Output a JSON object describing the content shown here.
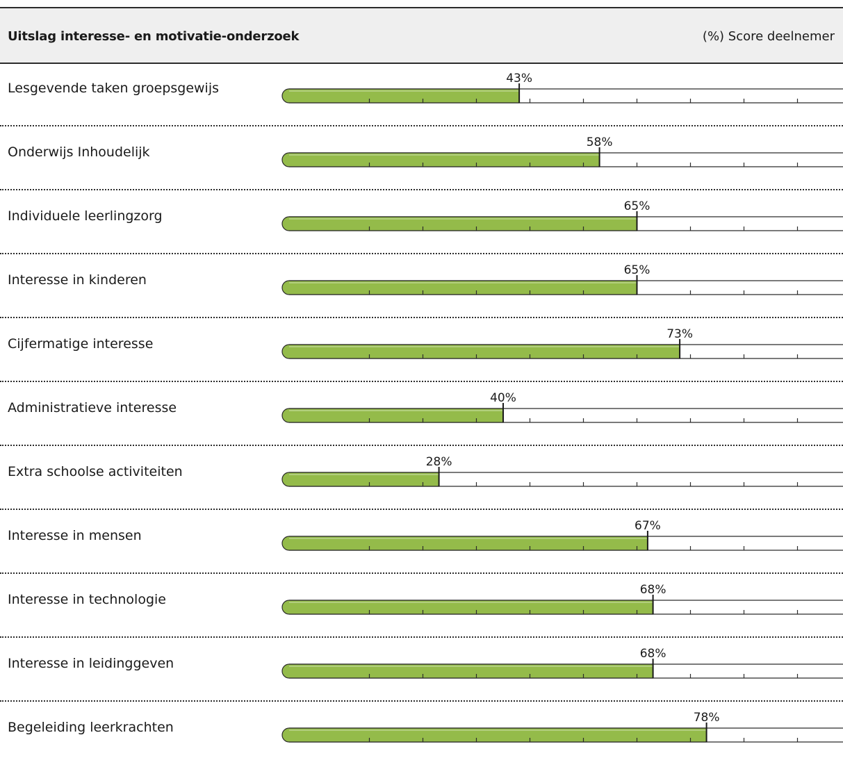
{
  "header": {
    "title": "Uitslag interesse- en motivatie-onderzoek",
    "score_label": "(%) Score deelnemer"
  },
  "chart_data": {
    "type": "bar",
    "orientation": "horizontal",
    "title": "Uitslag interesse- en motivatie-onderzoek",
    "value_unit": "%",
    "xlim": [
      0,
      100
    ],
    "bar_color": "#94bb4a",
    "categories": [
      "Lesgevende taken groepsgewijs",
      "Onderwijs Inhoudelijk",
      "Individuele leerlingzorg",
      "Interesse in kinderen",
      "Cijfermatige interesse",
      "Administratieve interesse",
      "Extra schoolse activiteiten",
      "Interesse in mensen",
      "Interesse in technologie",
      "Interesse in leidinggeven",
      "Begeleiding leerkrachten"
    ],
    "values": [
      43,
      58,
      65,
      65,
      73,
      40,
      28,
      67,
      68,
      68,
      78
    ],
    "value_labels": [
      "43%",
      "58%",
      "65%",
      "65%",
      "73%",
      "40%",
      "28%",
      "67%",
      "68%",
      "68%",
      "78%"
    ]
  }
}
